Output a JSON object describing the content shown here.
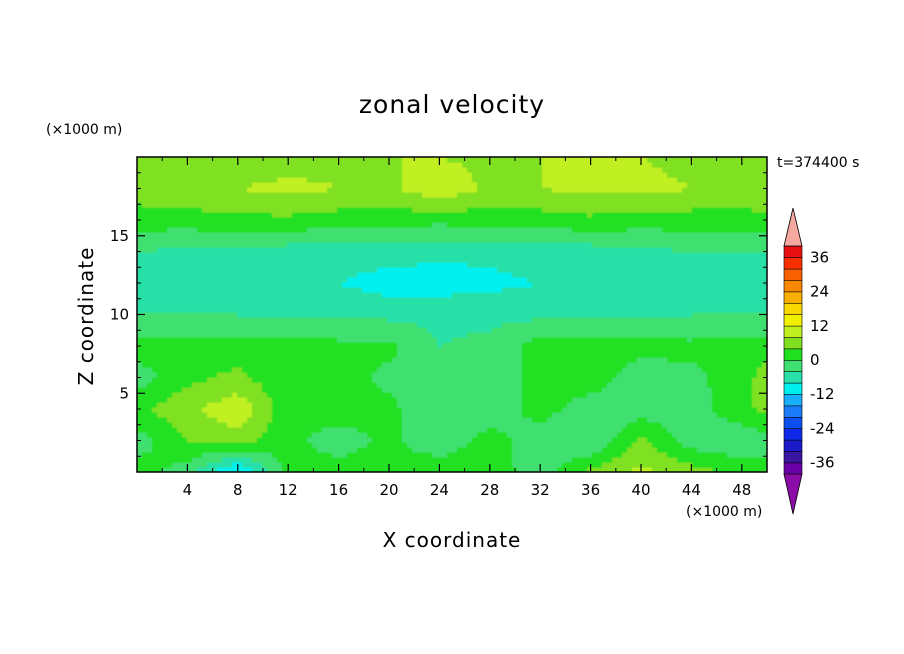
{
  "chart_data": {
    "type": "heatmap",
    "title": "zonal velocity",
    "xlabel": "X coordinate",
    "ylabel": "Z coordinate",
    "x_unit": "(×1000 m)",
    "y_unit": "(×1000 m)",
    "time_label": "t=374400 s",
    "xlim": [
      0,
      50
    ],
    "ylim": [
      0,
      20
    ],
    "xticks": [
      4,
      8,
      12,
      16,
      20,
      24,
      28,
      32,
      36,
      40,
      44,
      48
    ],
    "yticks": [
      5,
      10,
      15
    ],
    "colorbar": {
      "levels": [
        -40,
        -36,
        -32,
        -28,
        -24,
        -20,
        -16,
        -12,
        -8,
        -4,
        0,
        4,
        8,
        12,
        16,
        20,
        24,
        28,
        32,
        36,
        40
      ],
      "tick_labels": [
        "36",
        "24",
        "12",
        "0",
        "-12",
        "-24",
        "-36"
      ],
      "tick_values": [
        36,
        24,
        12,
        0,
        -12,
        -24,
        -36
      ],
      "colors": [
        "#6a00a8",
        "#3a16a0",
        "#1a1ac8",
        "#1028e8",
        "#0a50f0",
        "#1a7cf8",
        "#18aef8",
        "#00f0f0",
        "#28e0a8",
        "#40e070",
        "#20e020",
        "#80e020",
        "#c0f020",
        "#f0f000",
        "#f8d800",
        "#f8b000",
        "#f88800",
        "#f86000",
        "#f83000",
        "#e81010"
      ],
      "under_color": "#8c0ca8",
      "over_color": "#f4a8a0"
    },
    "field": {
      "x": [
        0,
        4,
        8,
        12,
        16,
        20,
        24,
        28,
        32,
        36,
        40,
        44,
        48,
        50
      ],
      "z": [
        0,
        2,
        4,
        6,
        8,
        10,
        12,
        14,
        16,
        18,
        20
      ],
      "u": [
        [
          2,
          -2,
          -14,
          2,
          2,
          2,
          3,
          2,
          -2,
          5,
          9,
          6,
          2,
          2
        ],
        [
          -2,
          4,
          6,
          1,
          -2,
          1,
          -3,
          2,
          -3,
          -4,
          5,
          -2,
          -3,
          -2
        ],
        [
          3,
          7,
          11,
          1,
          2,
          1,
          -3,
          -3,
          2,
          -3,
          -2,
          -2,
          3,
          5
        ],
        [
          -2,
          3,
          5,
          1,
          2,
          -1,
          -3,
          -3,
          2,
          3,
          -3,
          -1,
          2,
          6
        ],
        [
          2,
          2,
          2,
          2,
          1,
          1,
          -4,
          -3,
          2,
          2,
          2,
          1,
          2,
          2
        ],
        [
          -4,
          -4,
          -4,
          -5,
          -4,
          -5,
          -5,
          -5,
          -5,
          -5,
          -5,
          -4,
          -4,
          -4
        ],
        [
          -6,
          -6,
          -6,
          -7,
          -8,
          -10,
          -10,
          -9,
          -8,
          -8,
          -7,
          -6,
          -6,
          -6
        ],
        [
          -4,
          -5,
          -5,
          -6,
          -6,
          -6,
          -7,
          -7,
          -6,
          -6,
          -5,
          -4,
          -4,
          -4
        ],
        [
          2,
          2,
          3,
          3,
          2,
          2,
          1,
          2,
          2,
          3,
          2,
          2,
          2,
          3
        ],
        [
          6,
          7,
          8,
          9,
          8,
          7,
          11,
          7,
          8,
          9,
          9,
          8,
          7,
          7
        ],
        [
          5,
          6,
          6,
          6,
          7,
          8,
          8,
          7,
          8,
          9,
          8,
          7,
          7,
          7
        ]
      ]
    }
  }
}
